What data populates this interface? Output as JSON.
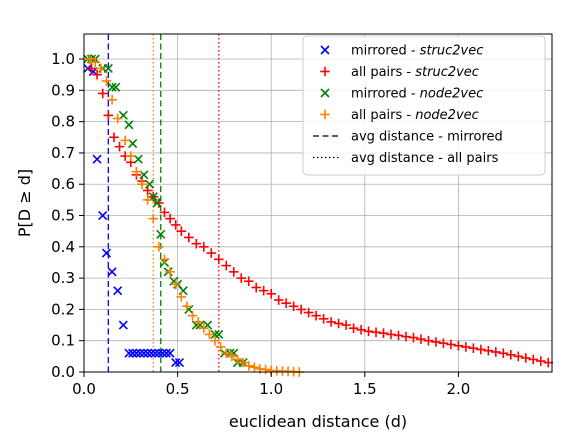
{
  "chart_data": {
    "type": "scatter",
    "xlabel": "euclidean distance (d)",
    "ylabel": "P[D ≥ d]",
    "xlim": [
      0.0,
      2.5
    ],
    "ylim": [
      0.0,
      1.08
    ],
    "xticks": [
      "0.0",
      "0.5",
      "1.0",
      "1.5",
      "2.0"
    ],
    "xtick_values": [
      0.0,
      0.5,
      1.0,
      1.5,
      2.0
    ],
    "yticks": [
      "0.0",
      "0.1",
      "0.2",
      "0.3",
      "0.4",
      "0.5",
      "0.6",
      "0.7",
      "0.8",
      "0.9",
      "1.0"
    ],
    "ytick_values": [
      0.0,
      0.1,
      0.2,
      0.3,
      0.4,
      0.5,
      0.6,
      0.7,
      0.8,
      0.9,
      1.0
    ],
    "grid": true,
    "legend_position": "top-right",
    "series": [
      {
        "name": "mirrored - ",
        "name_italic": "struc2vec",
        "marker": "x",
        "color": "#0000ff",
        "x": [
          0.02,
          0.05,
          0.07,
          0.1,
          0.12,
          0.15,
          0.18,
          0.21,
          0.24,
          0.26,
          0.28,
          0.3,
          0.32,
          0.34,
          0.36,
          0.38,
          0.4,
          0.42,
          0.44,
          0.46,
          0.49,
          0.51
        ],
        "y": [
          0.97,
          0.96,
          0.68,
          0.5,
          0.38,
          0.32,
          0.26,
          0.15,
          0.06,
          0.06,
          0.06,
          0.06,
          0.06,
          0.06,
          0.06,
          0.06,
          0.06,
          0.06,
          0.06,
          0.06,
          0.03,
          0.03
        ]
      },
      {
        "name": "all pairs - ",
        "name_italic": "struc2vec",
        "marker": "+",
        "color": "#ff0000",
        "x": [
          0.04,
          0.07,
          0.1,
          0.13,
          0.16,
          0.19,
          0.22,
          0.25,
          0.28,
          0.31,
          0.34,
          0.37,
          0.4,
          0.43,
          0.46,
          0.49,
          0.52,
          0.56,
          0.6,
          0.64,
          0.68,
          0.72,
          0.76,
          0.8,
          0.84,
          0.88,
          0.92,
          0.96,
          1.0,
          1.04,
          1.08,
          1.12,
          1.16,
          1.2,
          1.24,
          1.28,
          1.32,
          1.36,
          1.4,
          1.44,
          1.48,
          1.52,
          1.56,
          1.6,
          1.64,
          1.68,
          1.72,
          1.76,
          1.8,
          1.84,
          1.88,
          1.92,
          1.96,
          2.0,
          2.04,
          2.08,
          2.12,
          2.16,
          2.2,
          2.24,
          2.28,
          2.32,
          2.36,
          2.4,
          2.44,
          2.48
        ],
        "y": [
          0.97,
          0.95,
          0.89,
          0.82,
          0.75,
          0.72,
          0.69,
          0.67,
          0.63,
          0.61,
          0.58,
          0.56,
          0.54,
          0.51,
          0.49,
          0.47,
          0.45,
          0.43,
          0.41,
          0.4,
          0.38,
          0.36,
          0.34,
          0.32,
          0.3,
          0.29,
          0.27,
          0.26,
          0.25,
          0.23,
          0.22,
          0.21,
          0.2,
          0.19,
          0.18,
          0.17,
          0.16,
          0.155,
          0.15,
          0.14,
          0.135,
          0.13,
          0.127,
          0.124,
          0.12,
          0.117,
          0.113,
          0.11,
          0.105,
          0.1,
          0.096,
          0.092,
          0.088,
          0.084,
          0.08,
          0.076,
          0.072,
          0.068,
          0.064,
          0.06,
          0.055,
          0.05,
          0.045,
          0.04,
          0.035,
          0.03
        ]
      },
      {
        "name": "mirrored - ",
        "name_italic": "node2vec",
        "marker": "x",
        "color": "#008000",
        "x": [
          0.02,
          0.04,
          0.06,
          0.1,
          0.13,
          0.15,
          0.17,
          0.21,
          0.24,
          0.26,
          0.29,
          0.32,
          0.35,
          0.37,
          0.39,
          0.41,
          0.43,
          0.45,
          0.48,
          0.5,
          0.53,
          0.56,
          0.6,
          0.62,
          0.66,
          0.7,
          0.72,
          0.75,
          0.78,
          0.8,
          0.82,
          0.85
        ],
        "y": [
          1.0,
          1.0,
          1.0,
          0.97,
          0.97,
          0.91,
          0.91,
          0.82,
          0.79,
          0.73,
          0.68,
          0.63,
          0.6,
          0.56,
          0.54,
          0.44,
          0.35,
          0.32,
          0.29,
          0.28,
          0.26,
          0.2,
          0.15,
          0.15,
          0.15,
          0.12,
          0.12,
          0.06,
          0.06,
          0.06,
          0.03,
          0.03
        ]
      },
      {
        "name": "all pairs - ",
        "name_italic": "node2vec",
        "marker": "+",
        "color": "#ff8000",
        "x": [
          0.03,
          0.06,
          0.09,
          0.12,
          0.15,
          0.18,
          0.22,
          0.25,
          0.28,
          0.31,
          0.34,
          0.37,
          0.4,
          0.43,
          0.46,
          0.49,
          0.52,
          0.55,
          0.58,
          0.61,
          0.64,
          0.67,
          0.7,
          0.73,
          0.76,
          0.79,
          0.82,
          0.85,
          0.88,
          0.91,
          0.94,
          0.97,
          1.0,
          1.03,
          1.06,
          1.09,
          1.12,
          1.15
        ],
        "y": [
          1.0,
          0.99,
          0.97,
          0.93,
          0.87,
          0.81,
          0.74,
          0.69,
          0.64,
          0.6,
          0.55,
          0.49,
          0.4,
          0.36,
          0.32,
          0.28,
          0.24,
          0.21,
          0.18,
          0.16,
          0.14,
          0.12,
          0.1,
          0.08,
          0.06,
          0.05,
          0.04,
          0.03,
          0.02,
          0.015,
          0.01,
          0.008,
          0.005,
          0.004,
          0.003,
          0.002,
          0.001,
          0.0
        ]
      }
    ],
    "reference_lines": [
      {
        "series": 0,
        "x": 0.13,
        "style": "dashed",
        "color": "#0000ff"
      },
      {
        "series": 1,
        "x": 0.72,
        "style": "dotted",
        "color": "#ff0000"
      },
      {
        "series": 2,
        "x": 0.41,
        "style": "dashed",
        "color": "#008000"
      },
      {
        "series": 3,
        "x": 0.37,
        "style": "dotted",
        "color": "#ff8000"
      }
    ],
    "legend_extra": [
      {
        "label": "avg distance - mirrored",
        "style": "dashed",
        "color": "#000000"
      },
      {
        "label": "avg distance - all pairs",
        "style": "dotted",
        "color": "#000000"
      }
    ]
  }
}
